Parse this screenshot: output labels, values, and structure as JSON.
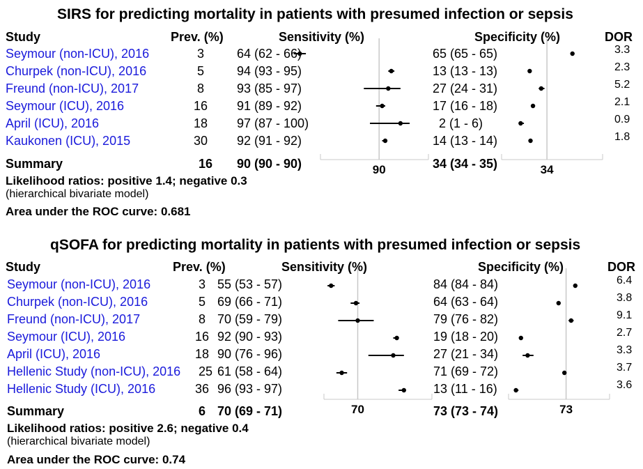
{
  "panels": [
    {
      "title": "SIRS for predicting mortality in patients with presumed infection or sepsis",
      "headers": {
        "study": "Study",
        "prev": "Prev. (%)",
        "sens": "Sensitivity (%)",
        "spec": "Specificity (%)",
        "dor": "DOR"
      },
      "rows": [
        {
          "study": "Seymour (non-ICU), 2016",
          "prev": "3",
          "sens": "64 (62 - 66)",
          "spec": "65 (65 - 65)",
          "dor": "3.3"
        },
        {
          "study": "Churpek (non-ICU), 2016",
          "prev": "5",
          "sens": "94 (93 - 95)",
          "spec": "13 (13 - 13)",
          "dor": "2.3"
        },
        {
          "study": "Freund (non-ICU), 2017",
          "prev": "8",
          "sens": "93 (85 - 97)",
          "spec": "27 (24 - 31)",
          "dor": "5.2"
        },
        {
          "study": "Seymour (ICU), 2016",
          "prev": "16",
          "sens": "91 (89 - 92)",
          "spec": "17 (16 - 18)",
          "dor": "2.1"
        },
        {
          "study": "April (ICU), 2016",
          "prev": "18",
          "sens": "97 (87 - 100)",
          "spec": "2 (1 - 6)",
          "dor": "0.9"
        },
        {
          "study": "Kaukonen (ICU), 2015",
          "prev": "30",
          "sens": "92 (91 - 92)",
          "spec": "14 (13 - 14)",
          "dor": "1.8"
        }
      ],
      "summary": {
        "label": "Summary",
        "prev": "16",
        "sens": "90 (90 - 90)",
        "spec": "34 (34 - 35)",
        "sens_tick": "90",
        "spec_tick": "34"
      },
      "notes": {
        "lr": "Likelihood ratios: positive 1.4; negative 0.3",
        "model": "(hierarchical bivariate model)",
        "auc": "Area under the ROC curve: 0.681"
      }
    },
    {
      "title": "qSOFA for predicting mortality in patients with presumed infection or sepsis",
      "headers": {
        "study": "Study",
        "prev": "Prev. (%)",
        "sens": "Sensitivity (%)",
        "spec": "Specificity (%)",
        "dor": "DOR"
      },
      "rows": [
        {
          "study": "Seymour (non-ICU), 2016",
          "prev": "3",
          "sens": "55 (53 - 57)",
          "spec": "84 (84 - 84)",
          "dor": "6.4"
        },
        {
          "study": "Churpek (non-ICU), 2016",
          "prev": "5",
          "sens": "69 (66 - 71)",
          "spec": "64 (63 - 64)",
          "dor": "3.8"
        },
        {
          "study": "Freund (non-ICU), 2017",
          "prev": "8",
          "sens": "70 (59 - 79)",
          "spec": "79 (76 - 82)",
          "dor": "9.1"
        },
        {
          "study": "Seymour (ICU), 2016",
          "prev": "16",
          "sens": "92 (90 - 93)",
          "spec": "19 (18 - 20)",
          "dor": "2.7"
        },
        {
          "study": "April (ICU), 2016",
          "prev": "18",
          "sens": "90 (76 - 96)",
          "spec": "27 (21 - 34)",
          "dor": "3.3"
        },
        {
          "study": "Hellenic Study (non-ICU), 2016",
          "prev": "25",
          "sens": "61 (58 - 64)",
          "spec": "71 (69 - 72)",
          "dor": "3.7"
        },
        {
          "study": "Hellenic Study (ICU), 2016",
          "prev": "36",
          "sens": "96 (93 - 97)",
          "spec": "13 (11 - 16)",
          "dor": "3.6"
        }
      ],
      "summary": {
        "label": "Summary",
        "prev": "6",
        "sens": "70 (69 - 71)",
        "spec": "73 (73 - 74)",
        "sens_tick": "70",
        "spec_tick": "73"
      },
      "notes": {
        "lr": "Likelihood ratios: positive 2.6; negative 0.4",
        "model": "(hierarchical bivariate model)",
        "auc": "Area under the ROC curve: 0.74"
      }
    }
  ],
  "chart_data": [
    {
      "type": "forest",
      "title": "SIRS for predicting mortality in patients with presumed infection or sepsis",
      "series": [
        {
          "name": "Sensitivity (%)",
          "values": [
            64,
            94,
            93,
            91,
            97,
            92
          ],
          "lower": [
            62,
            93,
            85,
            89,
            87,
            91
          ],
          "upper": [
            66,
            95,
            97,
            92,
            100,
            92
          ],
          "summary": 90
        },
        {
          "name": "Specificity (%)",
          "values": [
            65,
            13,
            27,
            17,
            2,
            14
          ],
          "lower": [
            65,
            13,
            24,
            16,
            1,
            13
          ],
          "upper": [
            65,
            13,
            31,
            18,
            6,
            14
          ],
          "summary": 34
        }
      ],
      "categories": [
        "Seymour (non-ICU), 2016",
        "Churpek (non-ICU), 2016",
        "Freund (non-ICU), 2017",
        "Seymour (ICU), 2016",
        "April (ICU), 2016",
        "Kaukonen (ICU), 2015"
      ],
      "xlim": [
        0,
        100
      ]
    },
    {
      "type": "forest",
      "title": "qSOFA for predicting mortality in patients with presumed infection or sepsis",
      "series": [
        {
          "name": "Sensitivity (%)",
          "values": [
            55,
            69,
            70,
            92,
            90,
            61,
            96
          ],
          "lower": [
            53,
            66,
            59,
            90,
            76,
            58,
            93
          ],
          "upper": [
            57,
            71,
            79,
            93,
            96,
            64,
            97
          ],
          "summary": 70
        },
        {
          "name": "Specificity (%)",
          "values": [
            84,
            64,
            79,
            19,
            27,
            71,
            13
          ],
          "lower": [
            84,
            63,
            76,
            18,
            21,
            69,
            11
          ],
          "upper": [
            84,
            64,
            82,
            20,
            34,
            72,
            16
          ],
          "summary": 73
        }
      ],
      "categories": [
        "Seymour (non-ICU), 2016",
        "Churpek (non-ICU), 2016",
        "Freund (non-ICU), 2017",
        "Seymour (ICU), 2016",
        "April (ICU), 2016",
        "Hellenic Study (non-ICU), 2016",
        "Hellenic Study (ICU), 2016"
      ],
      "xlim": [
        0,
        100
      ]
    }
  ]
}
